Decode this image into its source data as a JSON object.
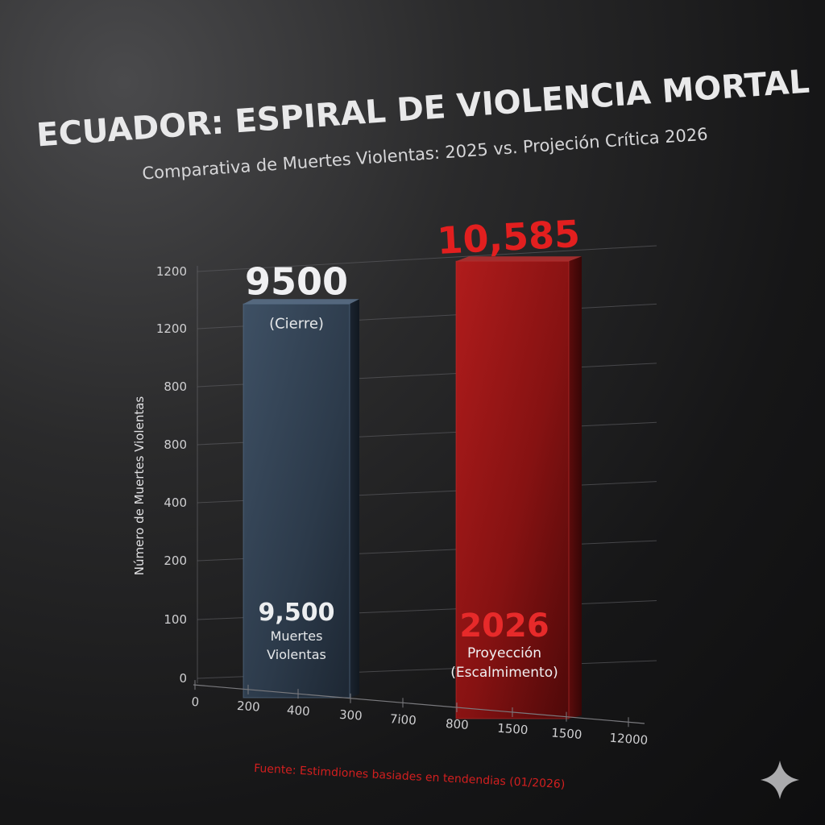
{
  "chart_data": {
    "type": "bar",
    "title": "ECUADOR: ESPIRAL DE VIOLENCIA MORTAL",
    "subtitle": "Comparativa de Muertes Violentas: 2025 vs. Projeción Crítica 2026",
    "ylabel": "Número de Muertes Violentas",
    "y_tick_labels": [
      "1200",
      "1200",
      "800",
      "800",
      "400",
      "200",
      "100",
      "0"
    ],
    "x_tick_labels": [
      "0",
      "200",
      "400",
      "300",
      "7i00",
      "800",
      "1500",
      "1500",
      "12000"
    ],
    "bars": [
      {
        "top_value_label": "9500",
        "top_sub_label": "(Cierre)",
        "inner_value_label": "9,500",
        "inner_line1": "Muertes",
        "inner_line2": "Violentas",
        "value": 9500,
        "color": "#2f3d4e"
      },
      {
        "top_value_label": "10,585",
        "inner_value_label": "2026",
        "inner_line1": "Proyección",
        "inner_line2": "(Escalmimento)",
        "value": 10585,
        "color": "#8e1414"
      }
    ],
    "source": "Fuente: Estimdiones basiades en tendendias (01/2026)",
    "grid": true
  },
  "colors": {
    "accent_red": "#e02424",
    "bar_2025": "#2f3d4e",
    "bar_2026": "#8e1414"
  },
  "icons": {
    "corner": "sparkle-icon"
  }
}
